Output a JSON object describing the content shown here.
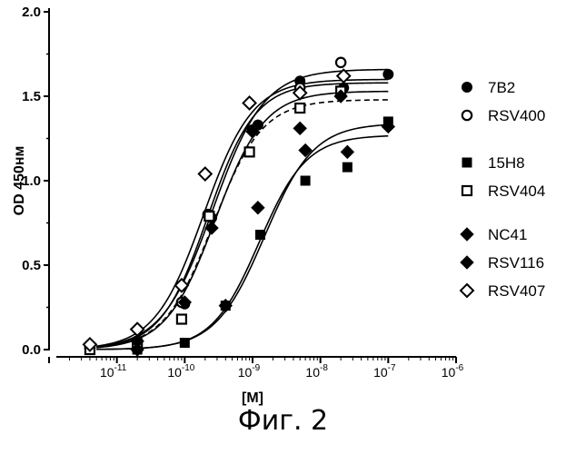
{
  "chart_data": {
    "type": "scatter",
    "xlabel": "[M]",
    "ylabel": "OD 450нм",
    "xscale": "log",
    "xlim": [
      1e-12,
      1e-06
    ],
    "ylim": [
      0,
      2.0
    ],
    "x_ticks": [
      {
        "value": 1e-11,
        "base": "10",
        "exp": "-11"
      },
      {
        "value": 1e-10,
        "base": "10",
        "exp": "-10"
      },
      {
        "value": 1e-09,
        "base": "10",
        "exp": "-9"
      },
      {
        "value": 1e-08,
        "base": "10",
        "exp": "-8"
      },
      {
        "value": 1e-07,
        "base": "10",
        "exp": "-7"
      },
      {
        "value": 1e-06,
        "base": "10",
        "exp": "-6"
      }
    ],
    "y_ticks": [
      {
        "value": 0.0,
        "label": "0.0"
      },
      {
        "value": 0.5,
        "label": "0.5"
      },
      {
        "value": 1.0,
        "label": "1.0"
      },
      {
        "value": 1.5,
        "label": "1.5"
      },
      {
        "value": 2.0,
        "label": "2.0"
      }
    ],
    "grid": false,
    "legend_position": "right",
    "series": [
      {
        "name": "7B2",
        "marker": "circle-filled",
        "fit": {
          "bottom": 0.0,
          "top": 1.58,
          "ec50": 2.2e-10,
          "hill": 1.25,
          "dashed": false
        },
        "points": [
          [
            4e-12,
            0.02
          ],
          [
            2e-11,
            0.03
          ],
          [
            1e-10,
            0.27
          ],
          [
            2.5e-10,
            0.78
          ],
          [
            1.2e-09,
            1.33
          ],
          [
            5e-09,
            1.59
          ],
          [
            2.2e-08,
            1.55
          ],
          [
            1e-07,
            1.63
          ]
        ]
      },
      {
        "name": "RSV400",
        "marker": "circle-open",
        "fit": {
          "bottom": 0.0,
          "top": 1.66,
          "ec50": 2.6e-10,
          "hill": 1.15,
          "dashed": false
        },
        "points": [
          [
            4e-12,
            0.01
          ],
          [
            2e-11,
            0.05
          ],
          [
            9e-11,
            0.28
          ],
          [
            2.2e-10,
            0.8
          ],
          [
            1e-09,
            1.3
          ],
          [
            5e-09,
            1.55
          ],
          [
            2e-08,
            1.7
          ]
        ]
      },
      {
        "name": "15H8",
        "marker": "square-filled",
        "fit": {
          "bottom": 0.0,
          "top": 1.34,
          "ec50": 1.5e-09,
          "hill": 1.2,
          "dashed": false
        },
        "points": [
          [
            4e-12,
            0.0
          ],
          [
            2e-11,
            0.0
          ],
          [
            1e-10,
            0.04
          ],
          [
            4e-10,
            0.26
          ],
          [
            1.3e-09,
            0.68
          ],
          [
            6e-09,
            1.0
          ],
          [
            2.5e-08,
            1.08
          ],
          [
            1e-07,
            1.35
          ]
        ]
      },
      {
        "name": "RSV404",
        "marker": "square-open",
        "fit": {
          "bottom": 0.0,
          "top": 1.48,
          "ec50": 2.6e-10,
          "hill": 1.2,
          "dashed": true
        },
        "points": [
          [
            4e-12,
            0.0
          ],
          [
            2e-11,
            0.02
          ],
          [
            9e-11,
            0.18
          ],
          [
            2.3e-10,
            0.79
          ],
          [
            9e-10,
            1.17
          ],
          [
            5e-09,
            1.43
          ],
          [
            2e-08,
            1.53
          ]
        ]
      },
      {
        "name": "NC41",
        "marker": "diamond-filled",
        "fit": {
          "bottom": 0.0,
          "top": 1.53,
          "ec50": 2.8e-10,
          "hill": 1.2,
          "dashed": false
        },
        "points": [
          [
            4e-12,
            0.03
          ],
          [
            2e-11,
            0.05
          ],
          [
            1e-10,
            0.28
          ],
          [
            2.5e-10,
            0.72
          ],
          [
            1e-09,
            1.29
          ],
          [
            5e-09,
            1.31
          ],
          [
            2e-08,
            1.5
          ]
        ]
      },
      {
        "name": "RSV116",
        "marker": "diamond-filled",
        "fit": {
          "bottom": 0.0,
          "top": 1.27,
          "ec50": 1.25e-09,
          "hill": 1.25,
          "dashed": false
        },
        "points": [
          [
            4e-12,
            0.03
          ],
          [
            2e-11,
            0.0
          ],
          [
            4e-10,
            0.26
          ],
          [
            1.2e-09,
            0.84
          ],
          [
            6e-09,
            1.18
          ],
          [
            2.5e-08,
            1.17
          ],
          [
            1e-07,
            1.32
          ]
        ]
      },
      {
        "name": "RSV407",
        "marker": "diamond-open",
        "fit": {
          "bottom": 0.0,
          "top": 1.6,
          "ec50": 1.9e-10,
          "hill": 1.2,
          "dashed": false
        },
        "points": [
          [
            4e-12,
            0.03
          ],
          [
            2e-11,
            0.12
          ],
          [
            9e-11,
            0.38
          ],
          [
            2e-10,
            1.04
          ],
          [
            9e-10,
            1.46
          ],
          [
            5e-09,
            1.52
          ],
          [
            2.2e-08,
            1.62
          ]
        ]
      }
    ]
  },
  "caption": "Фиг. 2"
}
